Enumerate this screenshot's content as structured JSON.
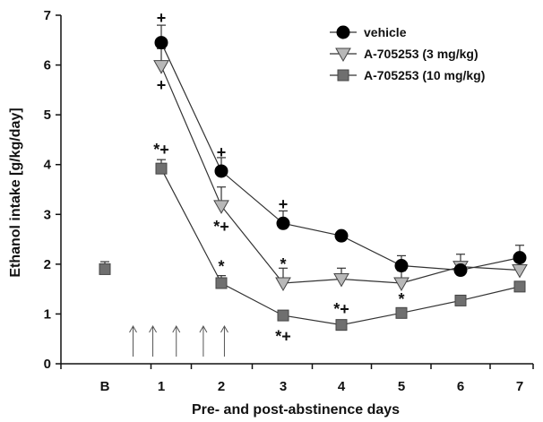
{
  "chart_data": {
    "type": "line",
    "xlabel": "Pre- and post-abstinence days",
    "ylabel": "Ethanol intake [g/kg/day]",
    "ylim": [
      0,
      7
    ],
    "yticks": [
      0,
      1,
      2,
      3,
      4,
      5,
      6,
      7
    ],
    "categories": [
      "B",
      "1",
      "2",
      "3",
      "4",
      "5",
      "6",
      "7"
    ],
    "grid": false,
    "legend_position": "top-right",
    "colors": {
      "vehicle": "#000000",
      "a3": "#b8b8b8",
      "a10": "#6f6f6f",
      "line": "#333333"
    },
    "series": [
      {
        "key": "vehicle",
        "name": "vehicle",
        "marker": "circle",
        "x": [
          "1",
          "2",
          "3",
          "4",
          "5",
          "6",
          "7"
        ],
        "values": [
          6.45,
          3.87,
          2.82,
          2.57,
          1.97,
          1.88,
          2.13
        ],
        "error": [
          0.35,
          0.27,
          0.25,
          0.05,
          0.2,
          0.15,
          0.25
        ]
      },
      {
        "key": "a3",
        "name": "A-705253 (3 mg/kg)",
        "marker": "triangle-down",
        "x": [
          "1",
          "2",
          "3",
          "4",
          "5",
          "6",
          "7"
        ],
        "values": [
          5.98,
          3.17,
          1.62,
          1.7,
          1.62,
          1.95,
          1.88
        ],
        "error": [
          0.35,
          0.38,
          0.3,
          0.22,
          0.25,
          0.25,
          0.2
        ]
      },
      {
        "key": "a10",
        "name": "A-705253 (10 mg/kg)",
        "marker": "square",
        "x": [
          "B",
          "1",
          "2",
          "3",
          "4",
          "5",
          "6",
          "7"
        ],
        "connect_from": 1,
        "values": [
          1.9,
          3.92,
          1.62,
          0.97,
          0.78,
          1.02,
          1.27,
          1.55
        ],
        "error": [
          0.15,
          0.18,
          0.15,
          0.08,
          0.08,
          0.08,
          0.1,
          0.1
        ]
      }
    ],
    "annotations": [
      {
        "x": "1",
        "y": 6.95,
        "text": "+"
      },
      {
        "x": "1",
        "y": 5.6,
        "text": "+"
      },
      {
        "x": "1",
        "y": 4.3,
        "text": "*+"
      },
      {
        "x": "2",
        "y": 4.25,
        "text": "+"
      },
      {
        "x": "2",
        "y": 2.75,
        "text": "*+"
      },
      {
        "x": "2",
        "y": 1.95,
        "text": "*"
      },
      {
        "x": "3",
        "y": 3.2,
        "text": "+"
      },
      {
        "x": "3",
        "y": 2.0,
        "text": "*"
      },
      {
        "x": "3",
        "y": 0.55,
        "text": "*+"
      },
      {
        "x": "4",
        "y": 1.1,
        "text": "*+"
      },
      {
        "x": "5",
        "y": 1.3,
        "text": "*"
      }
    ],
    "arrows_at": [
      0.5,
      0.85,
      1.25,
      1.7,
      2.05
    ]
  }
}
